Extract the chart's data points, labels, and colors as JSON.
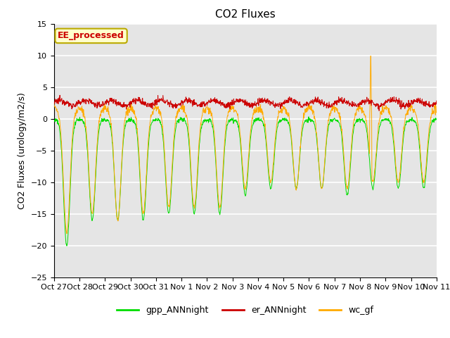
{
  "title": "CO2 Fluxes",
  "ylabel": "CO2 Fluxes (urology/m2/s)",
  "xlabel": "",
  "ylim": [
    -25,
    15
  ],
  "yticks": [
    -25,
    -20,
    -15,
    -10,
    -5,
    0,
    5,
    10,
    15
  ],
  "xtick_labels": [
    "Oct 27",
    "Oct 28",
    "Oct 29",
    "Oct 30",
    "Oct 31",
    "Nov 1",
    "Nov 2",
    "Nov 3",
    "Nov 4",
    "Nov 5",
    "Nov 6",
    "Nov 7",
    "Nov 8",
    "Nov 9",
    "Nov 10",
    "Nov 11"
  ],
  "series_colors": {
    "gpp_ANNnight": "#00dd00",
    "er_ANNnight": "#cc0000",
    "wc_gf": "#ffaa00"
  },
  "annotation_text": "EE_processed",
  "annotation_color": "#cc0000",
  "annotation_bg": "#ffffcc",
  "annotation_edge": "#bbaa00",
  "background_color": "#e5e5e5",
  "grid_color": "#ffffff",
  "n_days": 15,
  "points_per_day": 96,
  "title_fontsize": 11,
  "ylabel_fontsize": 9,
  "tick_fontsize": 8
}
